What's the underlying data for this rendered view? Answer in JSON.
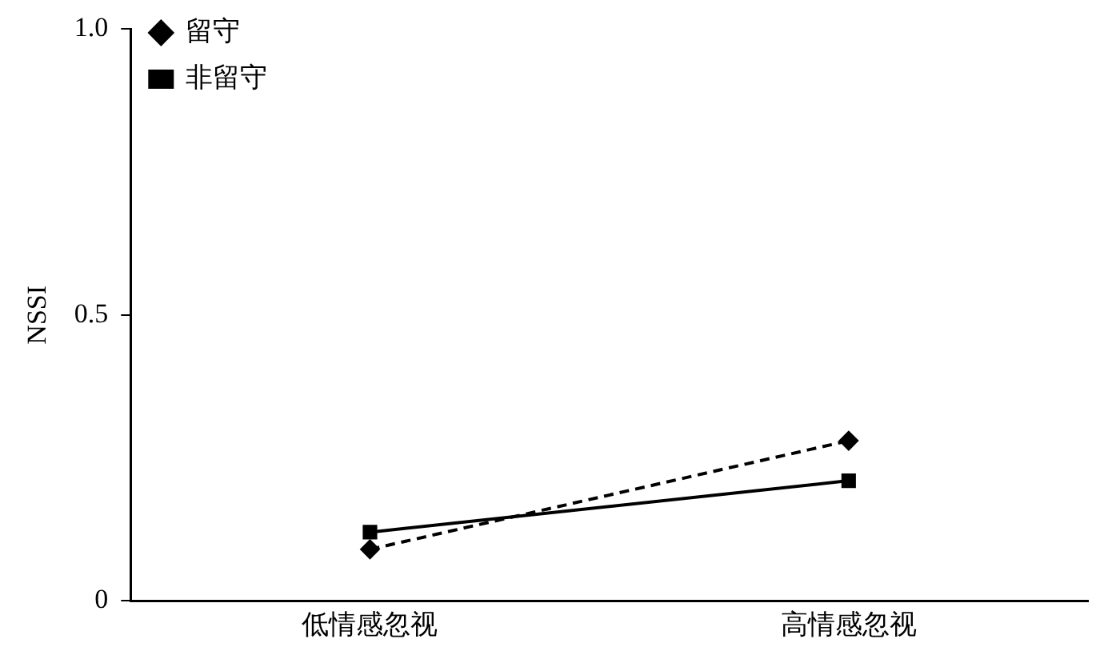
{
  "chart_data": {
    "type": "line",
    "ylabel": "NSSI",
    "categories": [
      "低情感忽视",
      "高情感忽视"
    ],
    "series": [
      {
        "name": "留守",
        "color": "#000000",
        "values": [
          0.09,
          0.28
        ],
        "marker": "diamond",
        "line_style": "dashed"
      },
      {
        "name": "非留守",
        "color": "#000000",
        "values": [
          0.12,
          0.21
        ],
        "marker": "square",
        "line_style": "solid"
      }
    ],
    "ylim": [
      0,
      1
    ],
    "yticks": [
      0,
      {
        "value": 0.5,
        "label": "0.5"
      },
      {
        "value": 1,
        "label": "1.0"
      }
    ],
    "grid": false,
    "legend": "top left"
  }
}
